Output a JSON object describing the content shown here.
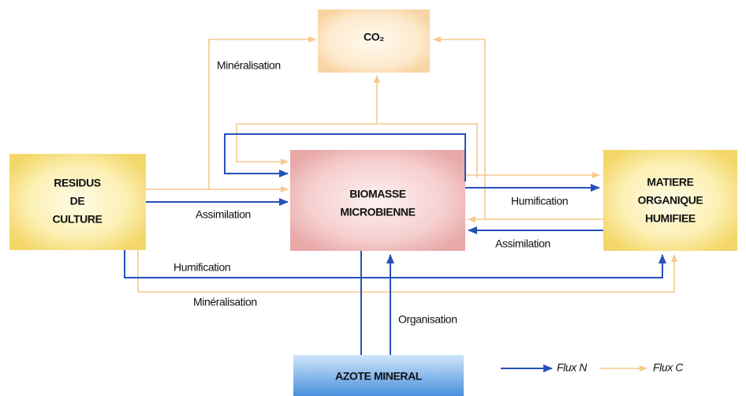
{
  "nodes": [
    {
      "id": "co2",
      "label": [
        "CO₂"
      ]
    },
    {
      "id": "residus",
      "label": [
        "RESIDUS",
        "DE",
        "CULTURE"
      ]
    },
    {
      "id": "biomasse",
      "label": [
        "BIOMASSE",
        "MICROBIENNE"
      ]
    },
    {
      "id": "matiere",
      "label": [
        "MATIERE",
        "ORGANIQUE",
        "HUMIFIEE"
      ]
    },
    {
      "id": "azote",
      "label": [
        "AZOTE MINERAL"
      ]
    }
  ],
  "edges": [
    {
      "label": "Minéralisation"
    },
    {
      "label": "Assimilation"
    },
    {
      "label": "Humification"
    },
    {
      "label": "Assimilation"
    },
    {
      "label": "Humification"
    },
    {
      "label": "Minéralisation"
    },
    {
      "label": "Organisation"
    }
  ],
  "legend": [
    {
      "label": "Flux N"
    },
    {
      "label": "Flux C"
    }
  ]
}
